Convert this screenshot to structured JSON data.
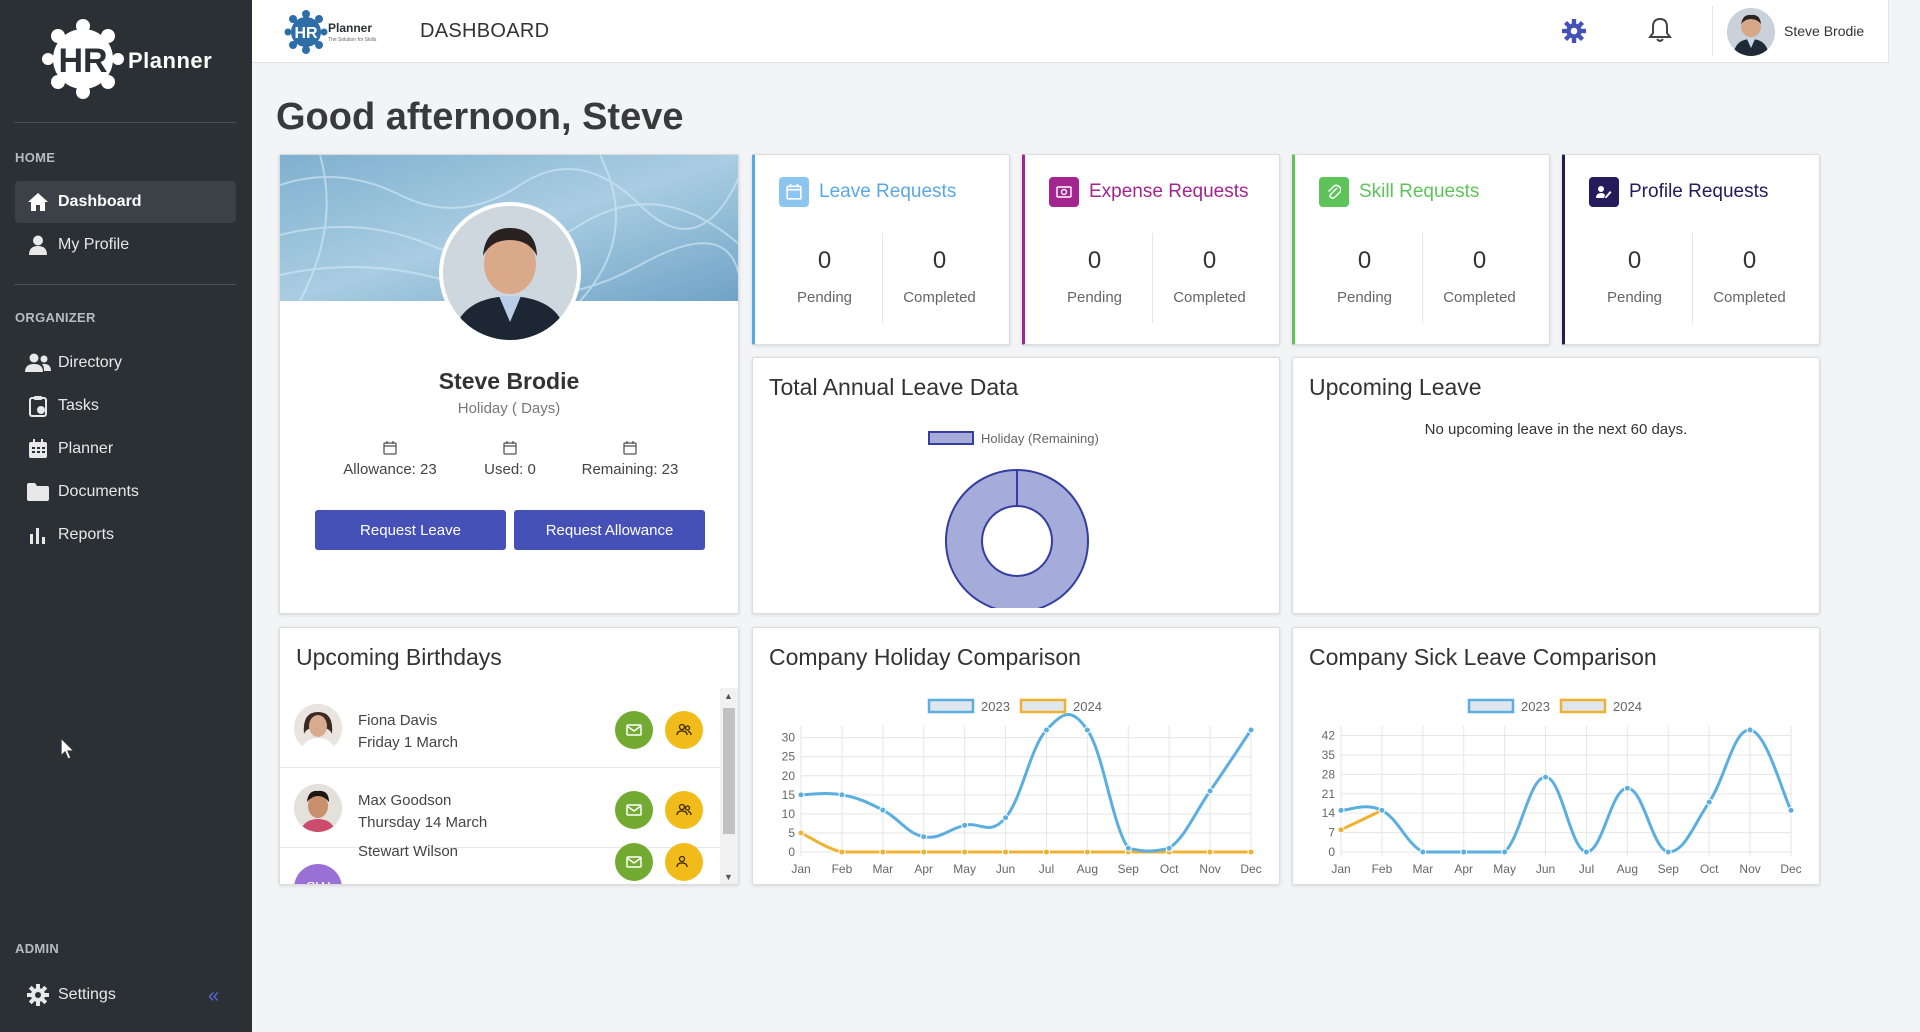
{
  "sidebar": {
    "logo_text": "Planner",
    "logo_hr": "HR",
    "sections": {
      "home": "HOME",
      "organizer": "ORGANIZER",
      "admin": "ADMIN"
    },
    "items": [
      {
        "label": "Dashboard",
        "icon": "home-icon"
      },
      {
        "label": "My Profile",
        "icon": "user-icon"
      },
      {
        "label": "Directory",
        "icon": "users-icon"
      },
      {
        "label": "Tasks",
        "icon": "clipboard-icon"
      },
      {
        "label": "Planner",
        "icon": "calendar-icon"
      },
      {
        "label": "Documents",
        "icon": "folder-icon"
      },
      {
        "label": "Reports",
        "icon": "bar-chart-icon"
      },
      {
        "label": "Settings",
        "icon": "gear-icon"
      }
    ],
    "collapse_label": "«"
  },
  "header": {
    "logo_hr": "HR",
    "logo_text": "Planner",
    "logo_tagline": "The Solution for Skills",
    "title": "DASHBOARD",
    "user_name": "Steve Brodie"
  },
  "greeting": "Good afternoon, Steve",
  "profile": {
    "name": "Steve Brodie",
    "subtitle": "Holiday ( Days)",
    "allowance": "Allowance: 23",
    "used": "Used: 0",
    "remaining": "Remaining: 23",
    "request_leave": "Request Leave",
    "request_allowance": "Request Allowance"
  },
  "requests": [
    {
      "title": "Leave Requests",
      "color": "#5aa7e6",
      "pending": "0",
      "completed": "0"
    },
    {
      "title": "Expense Requests",
      "color": "#a3258f",
      "pending": "0",
      "completed": "0"
    },
    {
      "title": "Skill Requests",
      "color": "#5ec45a",
      "pending": "0",
      "completed": "0"
    },
    {
      "title": "Profile Requests",
      "color": "#241a5c",
      "pending": "0",
      "completed": "0"
    }
  ],
  "labels": {
    "pending": "Pending",
    "completed": "Completed"
  },
  "annual_leave": {
    "title": "Total Annual Leave Data"
  },
  "upcoming_leave": {
    "title": "Upcoming Leave",
    "message": "No upcoming leave in the next 60 days."
  },
  "birthdays": {
    "title": "Upcoming Birthdays",
    "people": [
      {
        "name": "Fiona Davis",
        "date": "Friday 1 March"
      },
      {
        "name": "Max Goodson",
        "date": "Thursday 14 March"
      },
      {
        "name": "Stewart Wilson",
        "date": "",
        "initials": "SW"
      }
    ]
  },
  "colors": {
    "series_2023": "#5aaee0",
    "series_2024": "#f0b030",
    "donut": "#a6acd9",
    "donut_border": "#343ea0"
  },
  "chart_data": [
    {
      "type": "pie",
      "legend": [
        "Holiday (Remaining)"
      ],
      "values": [
        23
      ]
    },
    {
      "type": "line",
      "title": "Company Holiday Comparison",
      "categories": [
        "Jan",
        "Feb",
        "Mar",
        "Apr",
        "May",
        "Jun",
        "Jul",
        "Aug",
        "Sep",
        "Oct",
        "Nov",
        "Dec"
      ],
      "ylim": [
        0,
        32
      ],
      "yticks": [
        "0",
        "5",
        "10",
        "15",
        "20",
        "25",
        "30"
      ],
      "series": [
        {
          "name": "2023",
          "values": [
            15,
            15,
            11,
            4,
            7,
            9,
            32,
            32,
            1,
            1,
            16,
            32
          ]
        },
        {
          "name": "2024",
          "values": [
            5,
            0,
            0,
            0,
            0,
            0,
            0,
            0,
            0,
            0,
            0,
            0
          ]
        }
      ]
    },
    {
      "type": "line",
      "title": "Company Sick Leave Comparison",
      "categories": [
        "Jan",
        "Feb",
        "Mar",
        "Apr",
        "May",
        "Jun",
        "Jul",
        "Aug",
        "Sep",
        "Oct",
        "Nov",
        "Dec"
      ],
      "ylim": [
        0,
        44
      ],
      "yticks": [
        "0",
        "7",
        "14",
        "21",
        "28",
        "35",
        "42"
      ],
      "series": [
        {
          "name": "2023",
          "values": [
            15,
            15,
            0,
            0,
            0,
            27,
            0,
            23,
            0,
            18,
            44,
            15
          ]
        },
        {
          "name": "2024",
          "values": [
            8,
            15,
            null,
            null,
            null,
            null,
            null,
            null,
            null,
            null,
            null,
            null
          ]
        }
      ]
    }
  ]
}
